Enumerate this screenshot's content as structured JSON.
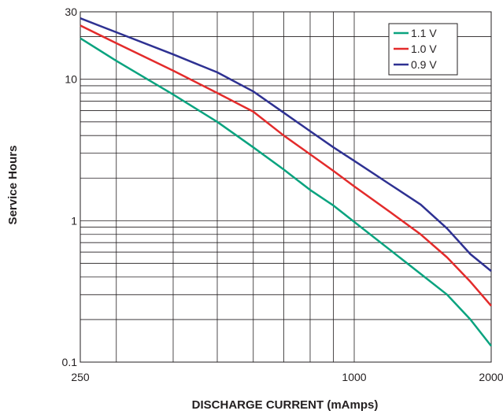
{
  "chart_data": {
    "type": "line",
    "xlabel": "DISCHARGE CURRENT (mAmps)",
    "ylabel": "Service Hours",
    "x_scale": "log",
    "y_scale": "log",
    "xlim": [
      250,
      2000
    ],
    "ylim": [
      0.1,
      30
    ],
    "x_tick_labels": [
      "250",
      "1000",
      "2000"
    ],
    "y_tick_labels": [
      "0.1",
      "1",
      "10",
      "30"
    ],
    "grid": true,
    "legend_position": "top-right",
    "series": [
      {
        "name": "1.1 V",
        "color": "#0aa37f",
        "points": [
          [
            250,
            19.5
          ],
          [
            300,
            13.5
          ],
          [
            400,
            7.8
          ],
          [
            500,
            5.0
          ],
          [
            600,
            3.3
          ],
          [
            700,
            2.3
          ],
          [
            800,
            1.65
          ],
          [
            900,
            1.28
          ],
          [
            1000,
            0.98
          ],
          [
            1200,
            0.62
          ],
          [
            1400,
            0.42
          ],
          [
            1600,
            0.3
          ],
          [
            1800,
            0.2
          ],
          [
            2000,
            0.13
          ]
        ]
      },
      {
        "name": "1.0 V",
        "color": "#e32b2b",
        "points": [
          [
            250,
            24
          ],
          [
            300,
            18
          ],
          [
            400,
            11.5
          ],
          [
            500,
            8.0
          ],
          [
            600,
            5.9
          ],
          [
            700,
            4.0
          ],
          [
            800,
            2.95
          ],
          [
            900,
            2.25
          ],
          [
            1000,
            1.75
          ],
          [
            1200,
            1.15
          ],
          [
            1400,
            0.8
          ],
          [
            1600,
            0.55
          ],
          [
            1800,
            0.37
          ],
          [
            2000,
            0.25
          ]
        ]
      },
      {
        "name": "0.9 V",
        "color": "#2e3192",
        "points": [
          [
            250,
            27
          ],
          [
            300,
            21.5
          ],
          [
            400,
            15
          ],
          [
            500,
            11.2
          ],
          [
            600,
            8.2
          ],
          [
            700,
            5.8
          ],
          [
            800,
            4.3
          ],
          [
            900,
            3.3
          ],
          [
            1000,
            2.65
          ],
          [
            1200,
            1.8
          ],
          [
            1400,
            1.3
          ],
          [
            1600,
            0.88
          ],
          [
            1800,
            0.58
          ],
          [
            2000,
            0.44
          ]
        ]
      }
    ]
  }
}
